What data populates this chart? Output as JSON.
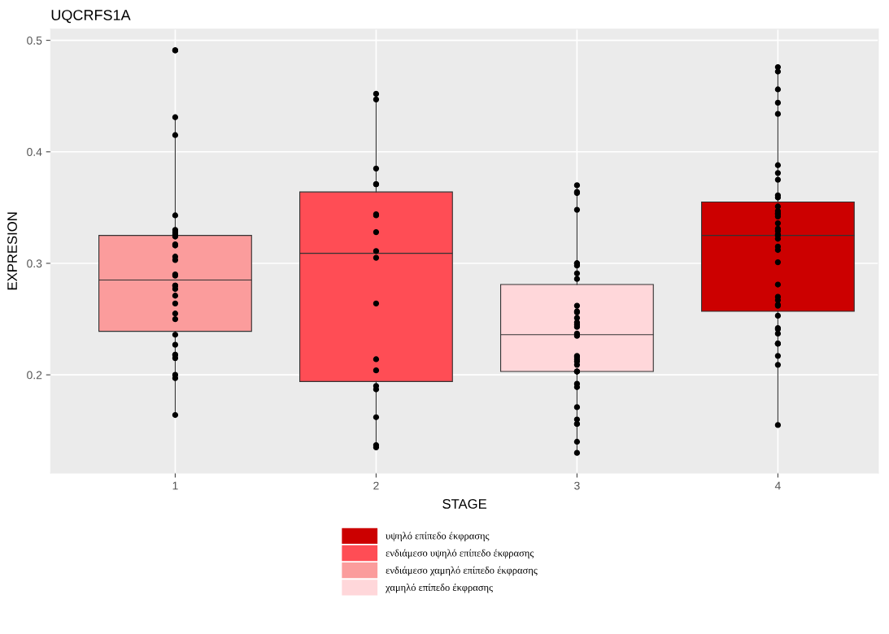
{
  "chart_data": {
    "type": "box",
    "title": "UQCRFS1A",
    "xlabel": "STAGE",
    "ylabel": "EXPRESION",
    "categories": [
      "1",
      "2",
      "3",
      "4"
    ],
    "ylim": [
      0.112,
      0.51
    ],
    "yticks": [
      0.2,
      0.3,
      0.4,
      0.5
    ],
    "grid": true,
    "legend": "bottom",
    "series": [
      {
        "name": "υψηλό επίπεδο έκφρασης",
        "color": "#cc0000",
        "boxes": [
          null,
          null,
          null,
          {
            "low": 0.155,
            "q1": 0.257,
            "median": 0.325,
            "q3": 0.355,
            "high": 0.477
          }
        ]
      },
      {
        "name": "ενδιάμεσο υψηλό επίπεδο έκφρασης",
        "color": "#ff4d55",
        "boxes": [
          null,
          {
            "low": 0.135,
            "q1": 0.194,
            "median": 0.309,
            "q3": 0.364,
            "high": 0.452
          },
          null,
          null
        ]
      },
      {
        "name": "ενδιάμεσο χαμηλό επίπεδο έκφρασης",
        "color": "#fb9c9c",
        "boxes": [
          {
            "low": 0.164,
            "q1": 0.239,
            "median": 0.285,
            "q3": 0.325,
            "high": 0.432
          },
          null,
          null,
          null
        ]
      },
      {
        "name": "χαμηλό επίπεδο έκφρασης",
        "color": "#ffd7da",
        "boxes": [
          null,
          null,
          {
            "low": 0.13,
            "q1": 0.203,
            "median": 0.236,
            "q3": 0.281,
            "high": 0.37
          },
          null
        ]
      },
      {
        "type": "scatter",
        "color": "#000000",
        "marker": "circle",
        "x": [
          "1",
          "1",
          "1",
          "1",
          "1",
          "1",
          "1",
          "1",
          "1",
          "1",
          "1",
          "1",
          "1",
          "1",
          "1",
          "1",
          "1",
          "1",
          "1",
          "1",
          "1",
          "1",
          "1",
          "1",
          "1",
          "1",
          "1",
          "1",
          "1",
          "1",
          "2",
          "2",
          "2",
          "2",
          "2",
          "2",
          "2",
          "2",
          "2",
          "2",
          "2",
          "2",
          "2",
          "2",
          "2",
          "2",
          "2",
          "2",
          "3",
          "3",
          "3",
          "3",
          "3",
          "3",
          "3",
          "3",
          "3",
          "3",
          "3",
          "3",
          "3",
          "3",
          "3",
          "3",
          "3",
          "3",
          "3",
          "3",
          "3",
          "3",
          "3",
          "3",
          "3",
          "3",
          "3",
          "3",
          "3",
          "3",
          "3",
          "3",
          "3",
          "3",
          "4",
          "4",
          "4",
          "4",
          "4",
          "4",
          "4",
          "4",
          "4",
          "4",
          "4",
          "4",
          "4",
          "4",
          "4",
          "4",
          "4",
          "4",
          "4",
          "4",
          "4",
          "4",
          "4",
          "4",
          "4",
          "4",
          "4",
          "4",
          "4",
          "4",
          "4",
          "4",
          "4",
          "4",
          "4",
          "4",
          "4",
          "4",
          "4"
        ],
        "values": [
          0.491,
          0.491,
          0.431,
          0.415,
          0.343,
          0.328,
          0.33,
          0.324,
          0.326,
          0.317,
          0.316,
          0.306,
          0.303,
          0.289,
          0.29,
          0.28,
          0.277,
          0.28,
          0.271,
          0.264,
          0.255,
          0.25,
          0.236,
          0.227,
          0.218,
          0.215,
          0.218,
          0.2,
          0.197,
          0.164,
          0.452,
          0.447,
          0.385,
          0.371,
          0.371,
          0.343,
          0.344,
          0.328,
          0.311,
          0.305,
          0.264,
          0.214,
          0.204,
          0.19,
          0.187,
          0.162,
          0.137,
          0.135,
          0.37,
          0.363,
          0.364,
          0.348,
          0.3,
          0.3,
          0.298,
          0.291,
          0.286,
          0.262,
          0.256,
          0.257,
          0.251,
          0.247,
          0.245,
          0.243,
          0.237,
          0.235,
          0.216,
          0.217,
          0.214,
          0.212,
          0.209,
          0.203,
          0.203,
          0.203,
          0.192,
          0.189,
          0.171,
          0.16,
          0.156,
          0.156,
          0.14,
          0.13,
          0.476,
          0.472,
          0.456,
          0.444,
          0.434,
          0.388,
          0.381,
          0.375,
          0.361,
          0.359,
          0.351,
          0.347,
          0.345,
          0.342,
          0.344,
          0.336,
          0.331,
          0.329,
          0.326,
          0.325,
          0.322,
          0.315,
          0.312,
          0.301,
          0.281,
          0.27,
          0.267,
          0.263,
          0.262,
          0.253,
          0.242,
          0.241,
          0.237,
          0.228,
          0.228,
          0.228,
          0.217,
          0.209,
          0.155
        ]
      }
    ]
  }
}
